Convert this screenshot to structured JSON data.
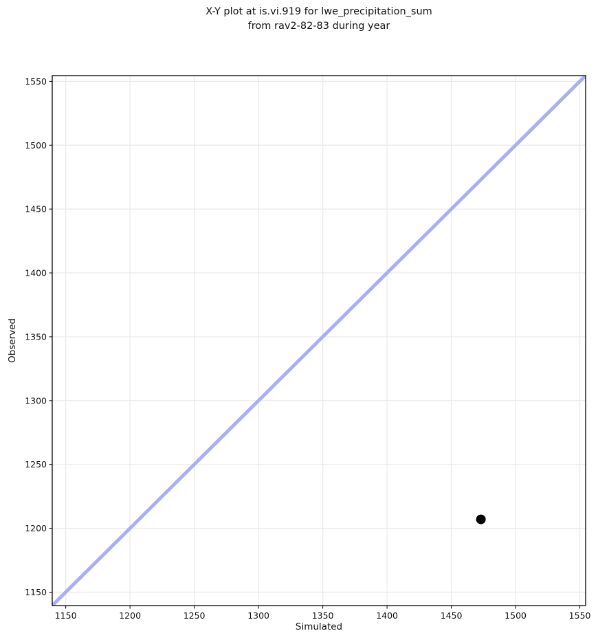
{
  "title": {
    "line1": "X-Y plot at is.vi.919 for lwe_precipitation_sum",
    "line2": "from rav2-82-83 during year"
  },
  "chart_data": {
    "type": "scatter",
    "title": "X-Y plot at is.vi.919 for lwe_precipitation_sum\nfrom rav2-82-83 during year",
    "xlabel": "Simulated",
    "ylabel": "Observed",
    "xlim": [
      1139.5,
      1554.5
    ],
    "ylim": [
      1139.5,
      1554.5
    ],
    "xticks": [
      1150,
      1200,
      1250,
      1300,
      1350,
      1400,
      1450,
      1500,
      1550
    ],
    "yticks": [
      1150,
      1200,
      1250,
      1300,
      1350,
      1400,
      1450,
      1500,
      1550
    ],
    "grid": true,
    "legend": false,
    "series": [
      {
        "name": "identity-line",
        "type": "line",
        "points": [
          [
            1139.5,
            1139.5
          ],
          [
            1554.5,
            1554.5
          ]
        ],
        "color": "#a9aff0",
        "line_width": 5
      },
      {
        "name": "observations",
        "type": "scatter",
        "points": [
          [
            1473,
            1207
          ]
        ],
        "color": "#000000",
        "marker_radius": 7
      }
    ],
    "style": {
      "grid_color": "#e9e9e9",
      "grid_width": 1.2,
      "spine_color": "#000000",
      "spine_width": 1.3,
      "tick_color": "#000000",
      "tick_length": 4.5,
      "background": "#ffffff"
    }
  }
}
